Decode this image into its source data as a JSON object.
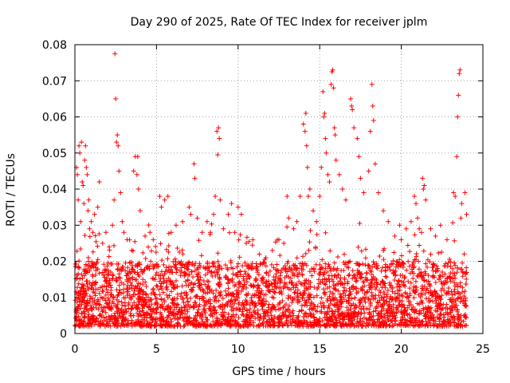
{
  "chart_data": {
    "type": "scatter",
    "title": "Day 290 of 2025, Rate Of TEC Index for receiver jplm",
    "xlabel": "GPS time / hours",
    "ylabel": "ROTI / TECUs",
    "xlim": [
      0,
      25
    ],
    "ylim": [
      0,
      0.08
    ],
    "x_ticks": [
      0,
      5,
      10,
      15,
      20,
      25
    ],
    "x_tick_labels": [
      "0",
      "5",
      "10",
      "15",
      "20",
      "25"
    ],
    "y_ticks": [
      0,
      0.01,
      0.02,
      0.03,
      0.04,
      0.05,
      0.06,
      0.07,
      0.08
    ],
    "y_tick_labels": [
      "0",
      "0.01",
      "0.02",
      "0.03",
      "0.04",
      "0.05",
      "0.06",
      "0.07",
      "0.08"
    ],
    "grid": true,
    "marker": "+",
    "series_color": "#ff0000",
    "dense_band": {
      "x_range": [
        0,
        24
      ],
      "y_typical_range": [
        0.002,
        0.02
      ]
    },
    "series": [
      {
        "name": "ROTI",
        "points": [
          [
            0.1,
            0.046
          ],
          [
            0.15,
            0.044
          ],
          [
            0.2,
            0.037
          ],
          [
            0.25,
            0.052
          ],
          [
            0.3,
            0.05
          ],
          [
            0.35,
            0.031
          ],
          [
            0.4,
            0.053
          ],
          [
            0.45,
            0.042
          ],
          [
            0.5,
            0.041
          ],
          [
            0.55,
            0.036
          ],
          [
            0.6,
            0.048
          ],
          [
            0.65,
            0.052
          ],
          [
            0.7,
            0.046
          ],
          [
            0.75,
            0.044
          ],
          [
            0.8,
            0.034
          ],
          [
            0.85,
            0.037
          ],
          [
            0.9,
            0.029
          ],
          [
            1.0,
            0.031
          ],
          [
            1.1,
            0.028
          ],
          [
            1.2,
            0.033
          ],
          [
            1.4,
            0.035
          ],
          [
            1.5,
            0.042
          ],
          [
            1.7,
            0.025
          ],
          [
            1.9,
            0.028
          ],
          [
            2.1,
            0.024
          ],
          [
            2.3,
            0.03
          ],
          [
            2.4,
            0.037
          ],
          [
            2.45,
            0.0775
          ],
          [
            2.5,
            0.065
          ],
          [
            2.55,
            0.053
          ],
          [
            2.6,
            0.055
          ],
          [
            2.65,
            0.052
          ],
          [
            2.7,
            0.045
          ],
          [
            2.8,
            0.039
          ],
          [
            2.9,
            0.031
          ],
          [
            3.0,
            0.028
          ],
          [
            3.2,
            0.026
          ],
          [
            3.6,
            0.045
          ],
          [
            3.7,
            0.049
          ],
          [
            3.8,
            0.044
          ],
          [
            3.85,
            0.049
          ],
          [
            3.9,
            0.04
          ],
          [
            4.0,
            0.034
          ],
          [
            4.3,
            0.027
          ],
          [
            4.6,
            0.028
          ],
          [
            4.8,
            0.026
          ],
          [
            5.2,
            0.038
          ],
          [
            5.3,
            0.035
          ],
          [
            5.5,
            0.037
          ],
          [
            5.7,
            0.038
          ],
          [
            5.9,
            0.028
          ],
          [
            6.2,
            0.03
          ],
          [
            6.6,
            0.031
          ],
          [
            7.0,
            0.035
          ],
          [
            7.1,
            0.033
          ],
          [
            7.3,
            0.047
          ],
          [
            7.35,
            0.043
          ],
          [
            7.5,
            0.032
          ],
          [
            7.8,
            0.028
          ],
          [
            8.1,
            0.031
          ],
          [
            8.3,
            0.028
          ],
          [
            8.5,
            0.033
          ],
          [
            8.6,
            0.038
          ],
          [
            8.7,
            0.056
          ],
          [
            8.75,
            0.0495
          ],
          [
            8.8,
            0.057
          ],
          [
            8.85,
            0.054
          ],
          [
            8.9,
            0.037
          ],
          [
            9.1,
            0.029
          ],
          [
            9.4,
            0.033
          ],
          [
            9.6,
            0.036
          ],
          [
            9.8,
            0.028
          ],
          [
            10.0,
            0.035
          ],
          [
            10.2,
            0.033
          ],
          [
            10.5,
            0.025
          ],
          [
            10.9,
            0.026
          ],
          [
            11.3,
            0.022
          ],
          [
            11.7,
            0.021
          ],
          [
            12.1,
            0.023
          ],
          [
            12.5,
            0.026
          ],
          [
            12.8,
            0.025
          ],
          [
            13.0,
            0.038
          ],
          [
            13.1,
            0.032
          ],
          [
            13.4,
            0.029
          ],
          [
            13.6,
            0.031
          ],
          [
            13.8,
            0.038
          ],
          [
            14.0,
            0.058
          ],
          [
            14.1,
            0.056
          ],
          [
            14.15,
            0.061
          ],
          [
            14.2,
            0.052
          ],
          [
            14.25,
            0.046
          ],
          [
            14.3,
            0.038
          ],
          [
            14.4,
            0.04
          ],
          [
            14.6,
            0.034
          ],
          [
            14.8,
            0.031
          ],
          [
            15.0,
            0.038
          ],
          [
            15.1,
            0.046
          ],
          [
            15.2,
            0.067
          ],
          [
            15.25,
            0.06
          ],
          [
            15.3,
            0.061
          ],
          [
            15.35,
            0.054
          ],
          [
            15.4,
            0.05
          ],
          [
            15.5,
            0.044
          ],
          [
            15.6,
            0.042
          ],
          [
            15.7,
            0.069
          ],
          [
            15.75,
            0.0725
          ],
          [
            15.8,
            0.073
          ],
          [
            15.85,
            0.068
          ],
          [
            15.9,
            0.057
          ],
          [
            15.95,
            0.055
          ],
          [
            16.0,
            0.048
          ],
          [
            16.2,
            0.044
          ],
          [
            16.4,
            0.04
          ],
          [
            16.6,
            0.037
          ],
          [
            16.9,
            0.065
          ],
          [
            16.95,
            0.063
          ],
          [
            17.0,
            0.062
          ],
          [
            17.1,
            0.057
          ],
          [
            17.3,
            0.054
          ],
          [
            17.4,
            0.049
          ],
          [
            17.5,
            0.043
          ],
          [
            17.7,
            0.039
          ],
          [
            18.0,
            0.045
          ],
          [
            18.1,
            0.056
          ],
          [
            18.2,
            0.069
          ],
          [
            18.25,
            0.063
          ],
          [
            18.3,
            0.059
          ],
          [
            18.4,
            0.047
          ],
          [
            18.6,
            0.039
          ],
          [
            18.9,
            0.034
          ],
          [
            19.2,
            0.031
          ],
          [
            19.6,
            0.027
          ],
          [
            19.9,
            0.03
          ],
          [
            20.3,
            0.029
          ],
          [
            20.6,
            0.031
          ],
          [
            20.8,
            0.038
          ],
          [
            20.9,
            0.036
          ],
          [
            21.0,
            0.032
          ],
          [
            21.1,
            0.029
          ],
          [
            21.3,
            0.043
          ],
          [
            21.35,
            0.04
          ],
          [
            21.4,
            0.041
          ],
          [
            21.5,
            0.037
          ],
          [
            21.8,
            0.029
          ],
          [
            22.1,
            0.027
          ],
          [
            22.4,
            0.03
          ],
          [
            22.8,
            0.026
          ],
          [
            23.2,
            0.039
          ],
          [
            23.3,
            0.038
          ],
          [
            23.4,
            0.049
          ],
          [
            23.45,
            0.06
          ],
          [
            23.5,
            0.066
          ],
          [
            23.55,
            0.072
          ],
          [
            23.6,
            0.073
          ],
          [
            23.65,
            0.032
          ],
          [
            23.7,
            0.036
          ],
          [
            23.9,
            0.039
          ],
          [
            24.0,
            0.033
          ]
        ]
      }
    ]
  }
}
